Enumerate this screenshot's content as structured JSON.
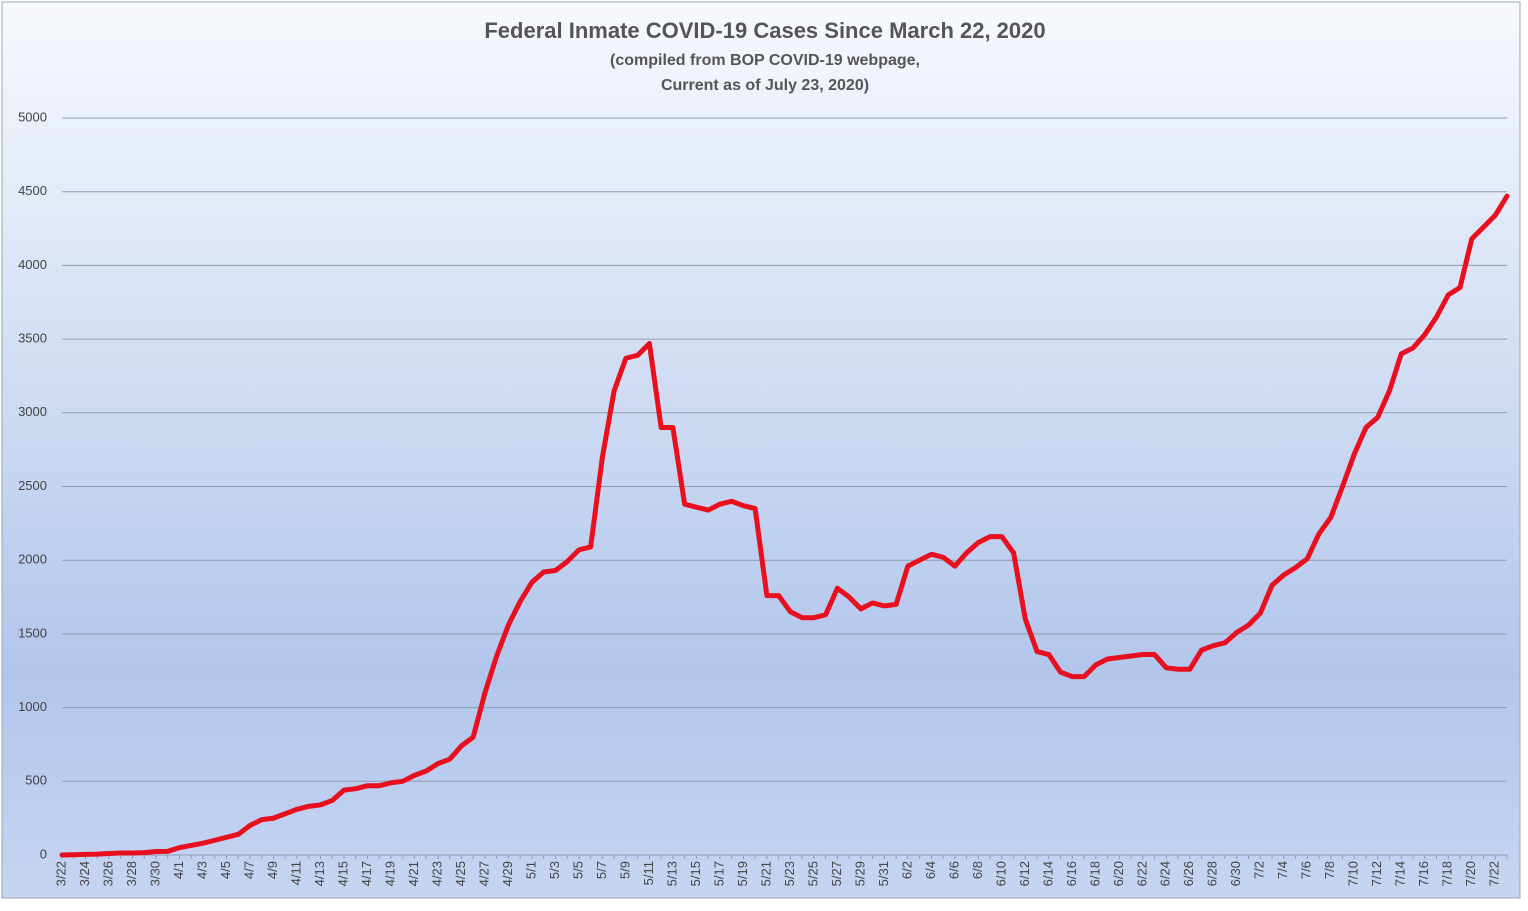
{
  "chart_data": {
    "type": "line",
    "title": "Federal Inmate COVID-19 Cases Since March 22, 2020",
    "subtitle": [
      "(compiled from BOP COVID-19 webpage,",
      "Current as of July 23, 2020)"
    ],
    "categories": [
      "3/22",
      null,
      "3/24",
      null,
      "3/26",
      null,
      "3/28",
      null,
      "3/30",
      null,
      "4/1",
      null,
      "4/3",
      null,
      "4/5",
      null,
      "4/7",
      null,
      "4/9",
      null,
      "4/11",
      null,
      "4/13",
      null,
      "4/15",
      null,
      "4/17",
      null,
      "4/19",
      null,
      "4/21",
      null,
      "4/23",
      null,
      "4/25",
      null,
      "4/27",
      null,
      "4/29",
      null,
      "5/1",
      null,
      "5/3",
      null,
      "5/5",
      null,
      "5/7",
      null,
      "5/9",
      null,
      "5/11",
      null,
      "5/13",
      null,
      "5/15",
      null,
      "5/17",
      null,
      "5/19",
      null,
      "5/21",
      null,
      "5/23",
      null,
      "5/25",
      null,
      "5/27",
      null,
      "5/29",
      null,
      "5/31",
      null,
      "6/2",
      null,
      "6/4",
      null,
      "6/6",
      null,
      "6/8",
      null,
      "6/10",
      null,
      "6/12",
      null,
      "6/14",
      null,
      "6/16",
      null,
      "6/18",
      null,
      "6/20",
      null,
      "6/22",
      null,
      "6/24",
      null,
      "6/26",
      null,
      "6/28",
      null,
      "6/30",
      null,
      "7/2",
      null,
      "7/4",
      null,
      "7/6",
      null,
      "7/8",
      null,
      "7/10",
      null,
      "7/12",
      null,
      "7/14",
      null,
      "7/16",
      null,
      "7/18",
      null,
      "7/20",
      null,
      "7/22",
      null
    ],
    "values": [
      0,
      2,
      4,
      6,
      10,
      14,
      14,
      16,
      24,
      25,
      50,
      65,
      80,
      100,
      120,
      140,
      200,
      240,
      250,
      280,
      310,
      330,
      340,
      370,
      440,
      450,
      470,
      470,
      490,
      500,
      540,
      570,
      620,
      650,
      740,
      800,
      1100,
      1350,
      1560,
      1720,
      1850,
      1920,
      1930,
      1990,
      2070,
      2090,
      2700,
      3150,
      3370,
      3390,
      3470,
      2900,
      2900,
      2380,
      2360,
      2340,
      2380,
      2400,
      2370,
      2350,
      1760,
      1760,
      1650,
      1610,
      1610,
      1630,
      1810,
      1750,
      1670,
      1710,
      1690,
      1700,
      1960,
      2000,
      2040,
      2020,
      1960,
      2050,
      2120,
      2160,
      2160,
      2050,
      1600,
      1380,
      1360,
      1240,
      1210,
      1210,
      1290,
      1330,
      1340,
      1350,
      1360,
      1360,
      1270,
      1260,
      1260,
      1390,
      1420,
      1440,
      1510,
      1560,
      1640,
      1830,
      1900,
      1950,
      2010,
      2180,
      2290,
      2500,
      2720,
      2900,
      2970,
      3150,
      3400,
      3440,
      3530,
      3650,
      3800,
      3850,
      4180,
      4260,
      4340,
      4470
    ],
    "color": "#e8101e",
    "ylim": [
      0,
      5000
    ],
    "yticks": [
      0,
      500,
      1000,
      1500,
      2000,
      2500,
      3000,
      3500,
      4000,
      4500,
      5000
    ],
    "grid": true
  }
}
